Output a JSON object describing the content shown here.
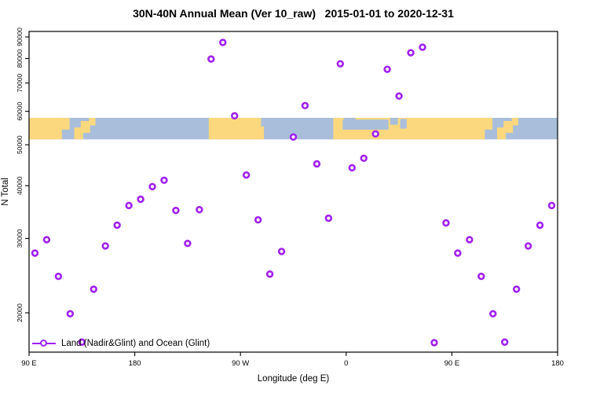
{
  "title": "30N-40N Annual Mean (Ver 10_raw)   2015-01-01 to 2020-12-31",
  "chart_data": {
    "type": "scatter",
    "title": "30N-40N Annual Mean (Ver 10_raw)   2015-01-01 to 2020-12-31",
    "xlabel": "Longitude (deg E)",
    "ylabel": "N Total",
    "y_scale": "log",
    "xlim": [
      90,
      540
    ],
    "ylim": [
      16000,
      93000
    ],
    "grid": false,
    "x_ticks": [
      {
        "value": 90,
        "label": "90 E"
      },
      {
        "value": 180,
        "label": "180"
      },
      {
        "value": 270,
        "label": "90 W"
      },
      {
        "value": 360,
        "label": "0"
      },
      {
        "value": 450,
        "label": "90 E"
      },
      {
        "value": 540,
        "label": "180"
      }
    ],
    "y_ticks": [
      20000,
      30000,
      40000,
      50000,
      60000,
      70000,
      80000,
      90000
    ],
    "legend": {
      "label": "Land (Nadir&Glint) and Ocean (Glint)",
      "position": "bottom-left"
    },
    "series": [
      {
        "name": "Land (Nadir&Glint) and Ocean (Glint)",
        "marker": "open-circle",
        "color": "#A020F0",
        "x": [
          95,
          105,
          115,
          125,
          135,
          145,
          155,
          165,
          175,
          185,
          195,
          205,
          215,
          225,
          235,
          245,
          255,
          265,
          275,
          285,
          295,
          305,
          315,
          325,
          335,
          345,
          355,
          365,
          375,
          385,
          395,
          405,
          415,
          425,
          435,
          445,
          455,
          465,
          475,
          485,
          495,
          505,
          515,
          525,
          535
        ],
        "y": [
          27700,
          29800,
          24400,
          19900,
          17050,
          22750,
          28800,
          32250,
          35900,
          37150,
          39800,
          41200,
          34950,
          29200,
          35100,
          79800,
          87350,
          58550,
          42400,
          33200,
          24700,
          27950,
          52150,
          61900,
          45050,
          33500,
          77750,
          44100,
          46450,
          53050,
          75450,
          65200,
          82600,
          85100,
          17000,
          32650,
          27700,
          29800,
          24400,
          19900,
          17050,
          22750,
          28800,
          32250,
          35900
        ]
      }
    ],
    "map_band": {
      "description": "30N-40N latitude world-map strip spanning plot width",
      "value_range": [
        51500,
        57900
      ],
      "ocean_color": "#A9BEDB",
      "land_color": "#FBD87E",
      "land_segments": [
        {
          "x0": 90,
          "x1": 118,
          "t": 0,
          "b": 1
        },
        {
          "x0": 116,
          "x1": 124.5,
          "t": 0,
          "b": 0.55
        },
        {
          "x0": 128.5,
          "x1": 136,
          "t": 0.45,
          "b": 1
        },
        {
          "x0": 134,
          "x1": 142,
          "t": 0.15,
          "b": 0.7
        },
        {
          "x0": 141,
          "x1": 146.5,
          "t": 0,
          "b": 0.35
        },
        {
          "x0": 243,
          "x1": 287.5,
          "t": 0,
          "b": 1
        },
        {
          "x0": 287,
          "x1": 290,
          "t": 0.4,
          "b": 1
        },
        {
          "x0": 349,
          "x1": 478,
          "t": 0,
          "b": 1
        },
        {
          "x0": 476,
          "x1": 484.5,
          "t": 0,
          "b": 0.55
        },
        {
          "x0": 488.5,
          "x1": 496,
          "t": 0.45,
          "b": 1
        },
        {
          "x0": 494,
          "x1": 502,
          "t": 0.15,
          "b": 0.7
        },
        {
          "x0": 501,
          "x1": 506.5,
          "t": 0,
          "b": 0.35
        }
      ],
      "sea_cutouts": [
        {
          "x0": 357,
          "x1": 396,
          "t": 0.08,
          "b": 0.55
        },
        {
          "x0": 358,
          "x1": 368,
          "t": 0,
          "b": 0.3
        },
        {
          "x0": 397.5,
          "x1": 404,
          "t": 0,
          "b": 0.32
        },
        {
          "x0": 406,
          "x1": 411.5,
          "t": 0.05,
          "b": 0.5
        }
      ]
    }
  }
}
